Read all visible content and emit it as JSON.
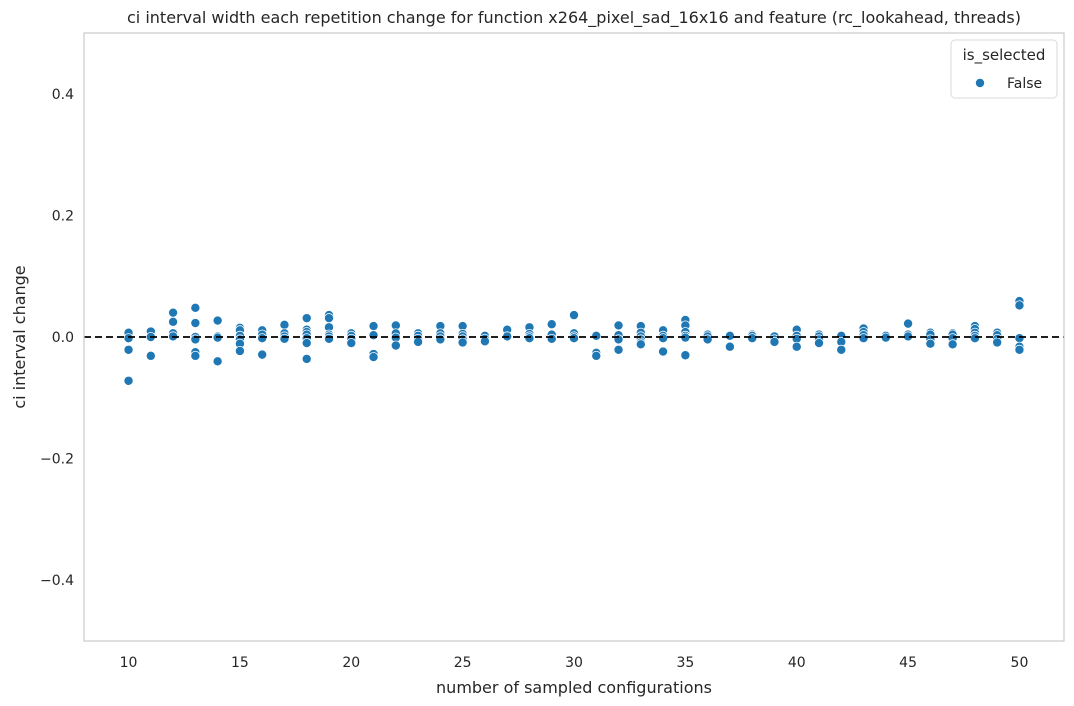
{
  "chart_data": {
    "type": "scatter",
    "title": "ci interval width each repetition change for function x264_pixel_sad_16x16 and feature (rc_lookahead, threads)",
    "xlabel": "number of sampled configurations",
    "ylabel": "ci interval change",
    "xlim": [
      8,
      52
    ],
    "ylim": [
      -0.5,
      0.5
    ],
    "xticks": [
      10,
      15,
      20,
      25,
      30,
      35,
      40,
      45,
      50
    ],
    "yticks": [
      -0.4,
      -0.2,
      0.0,
      0.2,
      0.4
    ],
    "ytick_labels": [
      "−0.4",
      "−0.2",
      "0.0",
      "0.2",
      "0.4"
    ],
    "grid": false,
    "reference_line": {
      "y": 0.0,
      "style": "dashed",
      "color": "#000000"
    },
    "legend": {
      "title": "is_selected",
      "position": "top-right",
      "entries": [
        {
          "label": "False",
          "color": "#1f77b4"
        }
      ]
    },
    "series": [
      {
        "name": "False",
        "color": "#1f77b4",
        "points": [
          [
            10,
            0.007
          ],
          [
            10,
            -0.002
          ],
          [
            10,
            -0.021
          ],
          [
            10,
            -0.072
          ],
          [
            11,
            0.009
          ],
          [
            11,
            0.0
          ],
          [
            11,
            -0.031
          ],
          [
            12,
            0.04
          ],
          [
            12,
            0.025
          ],
          [
            12,
            0.006
          ],
          [
            12,
            0.001
          ],
          [
            13,
            0.048
          ],
          [
            13,
            0.023
          ],
          [
            13,
            0.0
          ],
          [
            13,
            -0.004
          ],
          [
            13,
            -0.025
          ],
          [
            13,
            -0.031
          ],
          [
            14,
            0.027
          ],
          [
            14,
            0.001
          ],
          [
            14,
            -0.001
          ],
          [
            14,
            -0.04
          ],
          [
            15,
            0.015
          ],
          [
            15,
            0.011
          ],
          [
            15,
            0.002
          ],
          [
            15,
            -0.004
          ],
          [
            15,
            -0.011
          ],
          [
            15,
            -0.023
          ],
          [
            16,
            0.011
          ],
          [
            16,
            0.004
          ],
          [
            16,
            -0.002
          ],
          [
            16,
            -0.029
          ],
          [
            17,
            0.02
          ],
          [
            17,
            0.006
          ],
          [
            17,
            0.001
          ],
          [
            17,
            -0.003
          ],
          [
            18,
            0.031
          ],
          [
            18,
            0.012
          ],
          [
            18,
            0.008
          ],
          [
            18,
            0.004
          ],
          [
            18,
            -0.002
          ],
          [
            18,
            -0.01
          ],
          [
            18,
            -0.036
          ],
          [
            19,
            0.036
          ],
          [
            19,
            0.031
          ],
          [
            19,
            0.016
          ],
          [
            19,
            0.004
          ],
          [
            19,
            0.001
          ],
          [
            19,
            -0.003
          ],
          [
            20,
            0.006
          ],
          [
            20,
            0.002
          ],
          [
            20,
            -0.003
          ],
          [
            20,
            -0.01
          ],
          [
            21,
            0.018
          ],
          [
            21,
            0.003
          ],
          [
            21,
            -0.028
          ],
          [
            21,
            -0.033
          ],
          [
            22,
            0.019
          ],
          [
            22,
            0.006
          ],
          [
            22,
            -0.001
          ],
          [
            22,
            -0.014
          ],
          [
            23,
            0.006
          ],
          [
            23,
            0.002
          ],
          [
            23,
            -0.003
          ],
          [
            23,
            -0.008
          ],
          [
            24,
            0.018
          ],
          [
            24,
            0.006
          ],
          [
            24,
            0.001
          ],
          [
            24,
            -0.004
          ],
          [
            25,
            0.018
          ],
          [
            25,
            0.005
          ],
          [
            25,
            0.001
          ],
          [
            25,
            -0.004
          ],
          [
            25,
            -0.009
          ],
          [
            26,
            0.002
          ],
          [
            26,
            -0.003
          ],
          [
            26,
            -0.007
          ],
          [
            27,
            0.012
          ],
          [
            27,
            0.001
          ],
          [
            28,
            0.016
          ],
          [
            28,
            0.005
          ],
          [
            28,
            0.001
          ],
          [
            28,
            -0.002
          ],
          [
            29,
            0.021
          ],
          [
            29,
            0.004
          ],
          [
            29,
            -0.003
          ],
          [
            30,
            0.036
          ],
          [
            30,
            0.006
          ],
          [
            30,
            0.001
          ],
          [
            30,
            -0.002
          ],
          [
            31,
            0.002
          ],
          [
            31,
            -0.026
          ],
          [
            31,
            -0.031
          ],
          [
            32,
            0.019
          ],
          [
            32,
            0.003
          ],
          [
            32,
            -0.004
          ],
          [
            32,
            -0.021
          ],
          [
            33,
            0.018
          ],
          [
            33,
            0.007
          ],
          [
            33,
            0.001
          ],
          [
            33,
            -0.004
          ],
          [
            33,
            -0.009
          ],
          [
            33,
            -0.012
          ],
          [
            34,
            0.011
          ],
          [
            34,
            0.002
          ],
          [
            34,
            -0.002
          ],
          [
            34,
            -0.024
          ],
          [
            35,
            0.028
          ],
          [
            35,
            0.019
          ],
          [
            35,
            0.008
          ],
          [
            35,
            0.002
          ],
          [
            35,
            -0.001
          ],
          [
            35,
            -0.03
          ],
          [
            36,
            0.004
          ],
          [
            36,
            0.001
          ],
          [
            36,
            -0.004
          ],
          [
            37,
            0.002
          ],
          [
            37,
            -0.016
          ],
          [
            38,
            0.004
          ],
          [
            38,
            0.002
          ],
          [
            38,
            -0.002
          ],
          [
            39,
            0.001
          ],
          [
            39,
            -0.004
          ],
          [
            39,
            -0.008
          ],
          [
            40,
            0.012
          ],
          [
            40,
            0.002
          ],
          [
            40,
            -0.003
          ],
          [
            40,
            -0.016
          ],
          [
            41,
            0.004
          ],
          [
            41,
            0.001
          ],
          [
            41,
            -0.004
          ],
          [
            41,
            -0.01
          ],
          [
            42,
            0.002
          ],
          [
            42,
            -0.008
          ],
          [
            42,
            -0.021
          ],
          [
            43,
            0.014
          ],
          [
            43,
            0.008
          ],
          [
            43,
            0.003
          ],
          [
            43,
            -0.002
          ],
          [
            44,
            0.002
          ],
          [
            44,
            -0.001
          ],
          [
            45,
            0.022
          ],
          [
            45,
            0.004
          ],
          [
            45,
            0.001
          ],
          [
            46,
            0.007
          ],
          [
            46,
            0.004
          ],
          [
            46,
            -0.004
          ],
          [
            46,
            -0.011
          ],
          [
            47,
            0.006
          ],
          [
            47,
            0.004
          ],
          [
            47,
            -0.002
          ],
          [
            47,
            -0.012
          ],
          [
            48,
            0.018
          ],
          [
            48,
            0.013
          ],
          [
            48,
            0.007
          ],
          [
            48,
            0.002
          ],
          [
            48,
            -0.002
          ],
          [
            49,
            0.007
          ],
          [
            49,
            0.003
          ],
          [
            49,
            -0.003
          ],
          [
            49,
            -0.009
          ],
          [
            50,
            0.059
          ],
          [
            50,
            0.052
          ],
          [
            50,
            -0.002
          ],
          [
            50,
            -0.016
          ],
          [
            50,
            -0.021
          ]
        ]
      }
    ]
  }
}
